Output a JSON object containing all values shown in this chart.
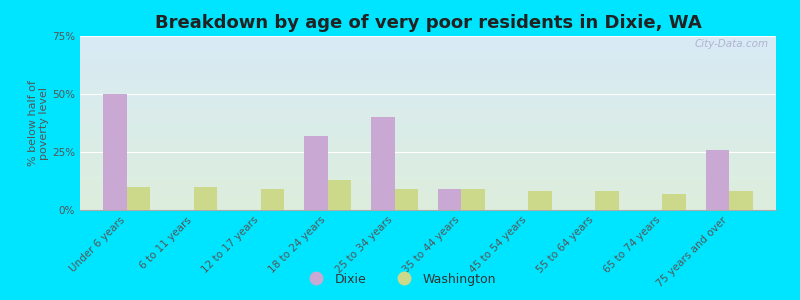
{
  "title": "Breakdown by age of very poor residents in Dixie, WA",
  "ylabel": "% below half of\npoverty level",
  "categories": [
    "Under 6 years",
    "6 to 11 years",
    "12 to 17 years",
    "18 to 24 years",
    "25 to 34 years",
    "35 to 44 years",
    "45 to 54 years",
    "55 to 64 years",
    "65 to 74 years",
    "75 years and over"
  ],
  "dixie_values": [
    50,
    0,
    0,
    32,
    40,
    9,
    0,
    0,
    0,
    26
  ],
  "washington_values": [
    10,
    10,
    9,
    13,
    9,
    9,
    8,
    8,
    7,
    8
  ],
  "dixie_color": "#c9a8d4",
  "washington_color": "#ccd98a",
  "bar_width": 0.35,
  "ylim": [
    0,
    75
  ],
  "yticks": [
    0,
    25,
    50,
    75
  ],
  "ytick_labels": [
    "0%",
    "25%",
    "50%",
    "75%"
  ],
  "background_outer": "#00e5ff",
  "background_plot_top": "#d8eaf5",
  "background_plot_bottom": "#ddeedd",
  "title_fontsize": 13,
  "axis_label_fontsize": 8,
  "tick_label_fontsize": 7.5,
  "legend_fontsize": 9,
  "watermark": "City-Data.com"
}
